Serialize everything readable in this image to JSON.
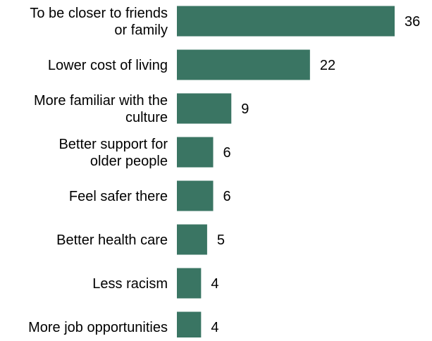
{
  "chart_data": {
    "type": "bar",
    "orientation": "horizontal",
    "categories": [
      [
        "To be closer to friends",
        "or family"
      ],
      [
        "Lower cost of living"
      ],
      [
        "More familiar with the",
        "culture"
      ],
      [
        "Better support for",
        "older people"
      ],
      [
        "Feel safer there"
      ],
      [
        "Better health care"
      ],
      [
        "Less racism"
      ],
      [
        "More job opportunities"
      ]
    ],
    "values": [
      36,
      22,
      9,
      6,
      6,
      5,
      4,
      4
    ],
    "value_labels": [
      "36",
      "22",
      "9",
      "6",
      "6",
      "5",
      "4",
      "4"
    ],
    "xlim": [
      0,
      36
    ],
    "title": "",
    "xlabel": "",
    "ylabel": "",
    "grid": false,
    "legend": "none",
    "bar_color": "#3a7563",
    "text_color": "#000000"
  }
}
